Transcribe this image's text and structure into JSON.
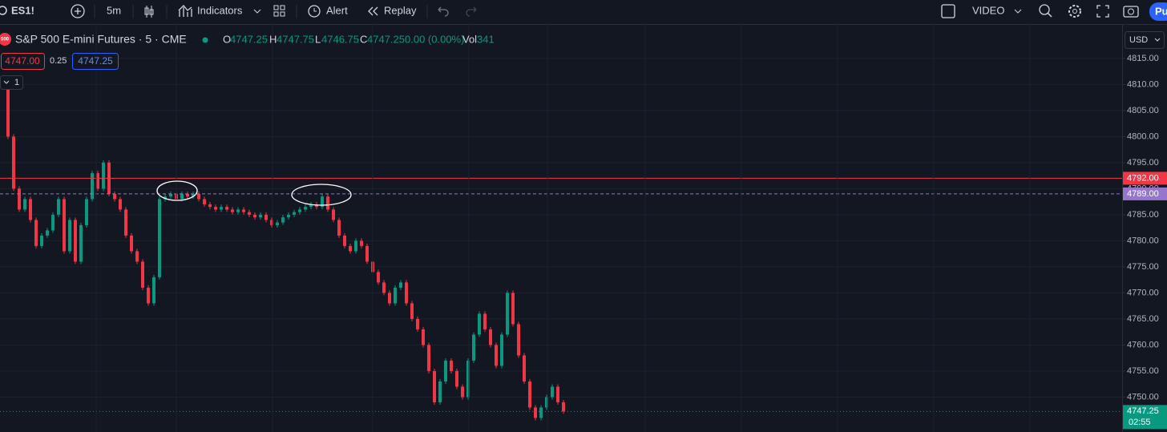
{
  "toolbar": {
    "symbol": "ES1!",
    "interval": "5m",
    "indicators": "Indicators",
    "alert": "Alert",
    "replay": "Replay",
    "layout": "VIDEO",
    "button": "Pu"
  },
  "legend": {
    "badge": "500",
    "name": "S&P 500 E-mini Futures · 5 · CME",
    "o": "O",
    "open": "4747.25",
    "h": "H",
    "high": "4747.75",
    "l": "L",
    "low": "4746.75",
    "c": "C",
    "close": "4747.25",
    "change": "0.00 (0.00%)",
    "vol": "Vol",
    "volume": "341"
  },
  "order": {
    "sell": "4747.00",
    "spread": "0.25",
    "buy": "4747.25",
    "count": "1"
  },
  "currency": "USD",
  "chart_data": {
    "type": "candlestick",
    "series": [
      {
        "name": "ES1!",
        "up_color": "#089981",
        "down_color": "#f23645",
        "values": [
          4810,
          4800,
          4790,
          4786,
          4788,
          4784,
          4779,
          4781,
          4782,
          4785,
          4788,
          4778,
          4784,
          4776,
          4783,
          4788,
          4793,
          4790,
          4795,
          4789,
          4788,
          4786,
          4781,
          4778,
          4776,
          4771,
          4768,
          4773,
          4788,
          4788.5,
          4789,
          4788,
          4789,
          4788.5,
          4789,
          4788,
          4787,
          4786.5,
          4786,
          4786.5,
          4786,
          4785.5,
          4786,
          4785.5,
          4785,
          4784.5,
          4785,
          4784,
          4783,
          4783.5,
          4784.5,
          4785,
          4785.5,
          4786,
          4786.5,
          4787,
          4786.5,
          4788.5,
          4786,
          4784,
          4781,
          4779,
          4778,
          4780,
          4779,
          4776,
          4774,
          4772,
          4770,
          4768,
          4771,
          4772,
          4768,
          4765,
          4763,
          4760,
          4755,
          4749,
          4753,
          4757,
          4755,
          4752,
          4750,
          4757,
          4762,
          4766,
          4763,
          4760,
          4756,
          4762,
          4770,
          4764,
          4758,
          4753,
          4748,
          4746,
          4748,
          4750,
          4752,
          4749,
          4747.25
        ]
      }
    ],
    "ylim": [
      4743.3,
      4821.6
    ],
    "yticks": [
      {
        "value": 4750,
        "label": "4750.00"
      },
      {
        "value": 4755,
        "label": "4755.00"
      },
      {
        "value": 4760,
        "label": "4760.00"
      },
      {
        "value": 4765,
        "label": "4765.00"
      },
      {
        "value": 4770,
        "label": "4770.00"
      },
      {
        "value": 4775,
        "label": "4775.00"
      },
      {
        "value": 4780,
        "label": "4780.00"
      },
      {
        "value": 4785,
        "label": "4785.00"
      },
      {
        "value": 4790,
        "label": "4790.00"
      },
      {
        "value": 4795,
        "label": "4795.00"
      },
      {
        "value": 4800,
        "label": "4800.00"
      },
      {
        "value": 4805,
        "label": "4805.00"
      },
      {
        "value": 4810,
        "label": "4810.00"
      },
      {
        "value": 4815,
        "label": "4815.00"
      }
    ],
    "grid": true,
    "lines": [
      {
        "value": 4792,
        "label": "4792.00",
        "color": "#f23645",
        "style": "solid"
      },
      {
        "value": 4789,
        "label": "4789.00",
        "color": "#9575cd",
        "style": "dashed"
      },
      {
        "value": 4747.25,
        "label": "4747.25",
        "color": "#089981",
        "style": "dotted",
        "countdown": "02:55"
      }
    ]
  }
}
